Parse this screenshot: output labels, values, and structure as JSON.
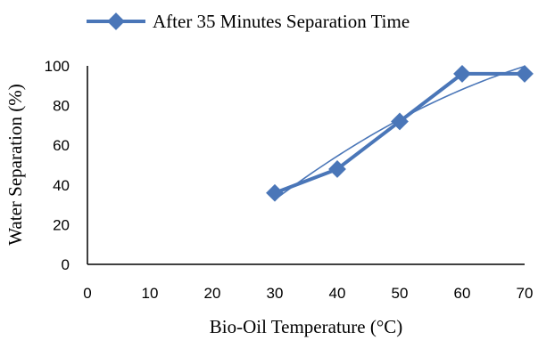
{
  "chart_data": {
    "type": "line",
    "title": "",
    "xlabel": "Bio-Oil Temperature (°C)",
    "ylabel": "Water Separation (%)",
    "xlim": [
      0,
      70
    ],
    "ylim": [
      0,
      100
    ],
    "xticks": [
      0,
      10,
      20,
      30,
      40,
      50,
      60,
      70
    ],
    "yticks": [
      0,
      20,
      40,
      60,
      80,
      100
    ],
    "grid": false,
    "legend_position": "top",
    "series": [
      {
        "name": "After 35 Minutes Separation Time",
        "marker": "diamond",
        "color": "#4a76b8",
        "x": [
          30,
          40,
          50,
          60,
          70
        ],
        "y": [
          36,
          48,
          72,
          96,
          96
        ]
      }
    ],
    "trendline": {
      "type": "polynomial",
      "color": "#4a76b8"
    }
  }
}
